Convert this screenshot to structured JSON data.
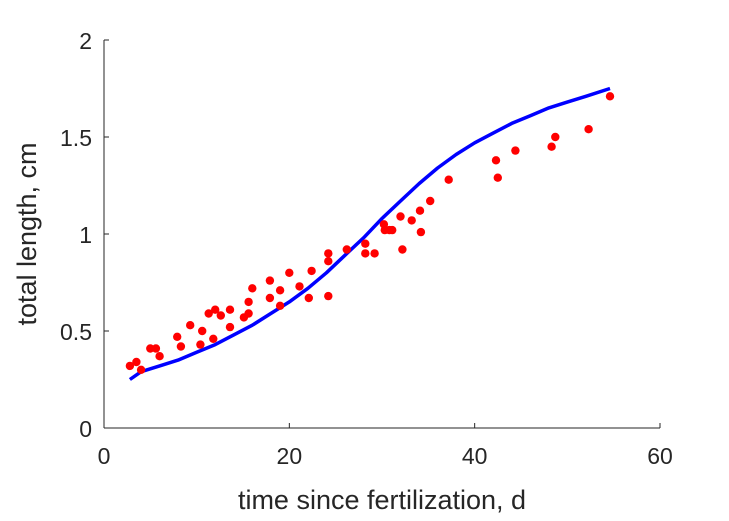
{
  "chart_data": {
    "type": "scatter",
    "title": "",
    "xlabel": "time since fertilization, d",
    "ylabel": "total length, cm",
    "xlim": [
      0,
      60
    ],
    "ylim": [
      0,
      2
    ],
    "xticks": [
      0,
      20,
      40,
      60
    ],
    "yticks": [
      0,
      0.5,
      1,
      1.5,
      2
    ],
    "xtick_labels": [
      "0",
      "20",
      "40",
      "60"
    ],
    "ytick_labels": [
      "0",
      "0.5",
      "1",
      "1.5",
      "2"
    ],
    "grid": false,
    "legend": "none",
    "series": [
      {
        "kind": "scatter",
        "color": "#ff0000",
        "points": [
          [
            2.8,
            0.32
          ],
          [
            3.5,
            0.34
          ],
          [
            4.0,
            0.3
          ],
          [
            5.0,
            0.41
          ],
          [
            5.6,
            0.41
          ],
          [
            6.0,
            0.37
          ],
          [
            7.9,
            0.47
          ],
          [
            8.3,
            0.42
          ],
          [
            9.3,
            0.53
          ],
          [
            10.4,
            0.43
          ],
          [
            10.6,
            0.5
          ],
          [
            11.3,
            0.59
          ],
          [
            11.8,
            0.46
          ],
          [
            12.0,
            0.61
          ],
          [
            12.6,
            0.58
          ],
          [
            13.6,
            0.52
          ],
          [
            13.6,
            0.61
          ],
          [
            15.1,
            0.57
          ],
          [
            15.6,
            0.65
          ],
          [
            15.6,
            0.59
          ],
          [
            16.0,
            0.72
          ],
          [
            17.9,
            0.76
          ],
          [
            17.9,
            0.67
          ],
          [
            19.0,
            0.71
          ],
          [
            19.0,
            0.63
          ],
          [
            20.0,
            0.8
          ],
          [
            21.1,
            0.73
          ],
          [
            22.1,
            0.67
          ],
          [
            22.4,
            0.81
          ],
          [
            24.2,
            0.9
          ],
          [
            24.2,
            0.86
          ],
          [
            24.2,
            0.68
          ],
          [
            26.2,
            0.92
          ],
          [
            28.2,
            0.95
          ],
          [
            28.2,
            0.9
          ],
          [
            29.2,
            0.9
          ],
          [
            30.2,
            1.05
          ],
          [
            30.3,
            1.02
          ],
          [
            30.8,
            1.02
          ],
          [
            31.1,
            1.02
          ],
          [
            32.0,
            1.09
          ],
          [
            32.2,
            0.92
          ],
          [
            33.2,
            1.07
          ],
          [
            34.1,
            1.12
          ],
          [
            34.2,
            1.01
          ],
          [
            35.2,
            1.17
          ],
          [
            37.2,
            1.28
          ],
          [
            42.3,
            1.38
          ],
          [
            42.5,
            1.29
          ],
          [
            44.4,
            1.43
          ],
          [
            48.3,
            1.45
          ],
          [
            48.7,
            1.5
          ],
          [
            52.3,
            1.54
          ],
          [
            54.6,
            1.71
          ]
        ]
      },
      {
        "kind": "line",
        "color": "#0000ff",
        "points": [
          [
            2.8,
            0.25
          ],
          [
            4,
            0.29
          ],
          [
            6,
            0.32
          ],
          [
            8,
            0.35
          ],
          [
            10,
            0.39
          ],
          [
            12,
            0.43
          ],
          [
            14,
            0.48
          ],
          [
            16,
            0.53
          ],
          [
            18,
            0.59
          ],
          [
            20,
            0.65
          ],
          [
            22,
            0.72
          ],
          [
            24,
            0.8
          ],
          [
            26,
            0.89
          ],
          [
            28,
            0.98
          ],
          [
            30,
            1.08
          ],
          [
            32,
            1.17
          ],
          [
            34,
            1.26
          ],
          [
            36,
            1.34
          ],
          [
            38,
            1.41
          ],
          [
            40,
            1.47
          ],
          [
            42,
            1.52
          ],
          [
            44,
            1.57
          ],
          [
            46,
            1.61
          ],
          [
            48,
            1.65
          ],
          [
            50,
            1.68
          ],
          [
            52,
            1.71
          ],
          [
            54.6,
            1.75
          ]
        ]
      }
    ]
  }
}
